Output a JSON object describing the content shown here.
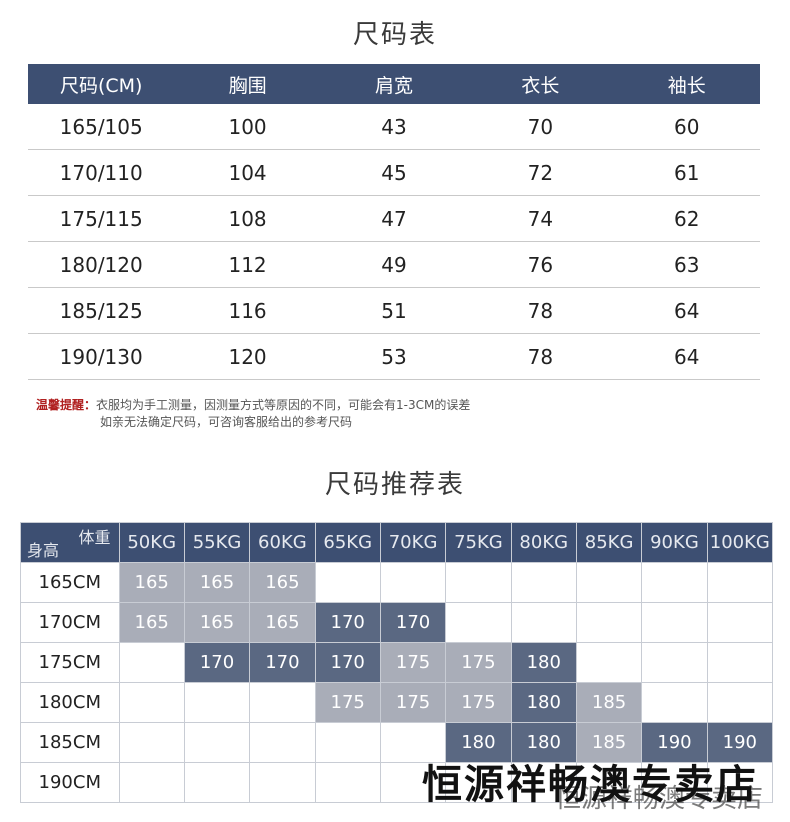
{
  "size_table": {
    "title": "尺码表",
    "headers": [
      "尺码(CM)",
      "胸围",
      "肩宽",
      "衣长",
      "袖长"
    ],
    "rows": [
      [
        "165/105",
        "100",
        "43",
        "70",
        "60"
      ],
      [
        "170/110",
        "104",
        "45",
        "72",
        "61"
      ],
      [
        "175/115",
        "108",
        "47",
        "74",
        "62"
      ],
      [
        "180/120",
        "112",
        "49",
        "76",
        "63"
      ],
      [
        "185/125",
        "116",
        "51",
        "78",
        "64"
      ],
      [
        "190/130",
        "120",
        "53",
        "78",
        "64"
      ]
    ]
  },
  "note": {
    "lead": "温馨提醒：",
    "line1": "衣服均为手工测量，因测量方式等原因的不同，可能会有1-3CM的误差",
    "line2": "如亲无法确定尺码，可咨询客服给出的参考尺码"
  },
  "recommend_table": {
    "title": "尺码推荐表",
    "corner_weight": "体重",
    "corner_height": "身高",
    "weights": [
      "50KG",
      "55KG",
      "60KG",
      "65KG",
      "70KG",
      "75KG",
      "80KG",
      "85KG",
      "90KG",
      "100KG"
    ],
    "rows": [
      {
        "height": "165CM",
        "cells": [
          {
            "v": "165",
            "t": "light"
          },
          {
            "v": "165",
            "t": "light"
          },
          {
            "v": "165",
            "t": "light"
          },
          {
            "v": "",
            "t": "empty"
          },
          {
            "v": "",
            "t": "empty"
          },
          {
            "v": "",
            "t": "empty"
          },
          {
            "v": "",
            "t": "empty"
          },
          {
            "v": "",
            "t": "empty"
          },
          {
            "v": "",
            "t": "empty"
          },
          {
            "v": "",
            "t": "empty"
          }
        ]
      },
      {
        "height": "170CM",
        "cells": [
          {
            "v": "165",
            "t": "light"
          },
          {
            "v": "165",
            "t": "light"
          },
          {
            "v": "165",
            "t": "light"
          },
          {
            "v": "170",
            "t": "dark"
          },
          {
            "v": "170",
            "t": "dark"
          },
          {
            "v": "",
            "t": "empty"
          },
          {
            "v": "",
            "t": "empty"
          },
          {
            "v": "",
            "t": "empty"
          },
          {
            "v": "",
            "t": "empty"
          },
          {
            "v": "",
            "t": "empty"
          }
        ]
      },
      {
        "height": "175CM",
        "cells": [
          {
            "v": "",
            "t": "empty"
          },
          {
            "v": "170",
            "t": "dark"
          },
          {
            "v": "170",
            "t": "dark"
          },
          {
            "v": "170",
            "t": "dark"
          },
          {
            "v": "175",
            "t": "light"
          },
          {
            "v": "175",
            "t": "light"
          },
          {
            "v": "180",
            "t": "dark"
          },
          {
            "v": "",
            "t": "empty"
          },
          {
            "v": "",
            "t": "empty"
          },
          {
            "v": "",
            "t": "empty"
          }
        ]
      },
      {
        "height": "180CM",
        "cells": [
          {
            "v": "",
            "t": "empty"
          },
          {
            "v": "",
            "t": "empty"
          },
          {
            "v": "",
            "t": "empty"
          },
          {
            "v": "175",
            "t": "light"
          },
          {
            "v": "175",
            "t": "light"
          },
          {
            "v": "175",
            "t": "light"
          },
          {
            "v": "180",
            "t": "dark"
          },
          {
            "v": "185",
            "t": "light"
          },
          {
            "v": "",
            "t": "empty"
          },
          {
            "v": "",
            "t": "empty"
          }
        ]
      },
      {
        "height": "185CM",
        "cells": [
          {
            "v": "",
            "t": "empty"
          },
          {
            "v": "",
            "t": "empty"
          },
          {
            "v": "",
            "t": "empty"
          },
          {
            "v": "",
            "t": "empty"
          },
          {
            "v": "",
            "t": "empty"
          },
          {
            "v": "180",
            "t": "dark"
          },
          {
            "v": "180",
            "t": "dark"
          },
          {
            "v": "185",
            "t": "light"
          },
          {
            "v": "190",
            "t": "dark"
          },
          {
            "v": "190",
            "t": "dark"
          }
        ]
      },
      {
        "height": "190CM",
        "cells": [
          {
            "v": "",
            "t": "empty"
          },
          {
            "v": "",
            "t": "empty"
          },
          {
            "v": "",
            "t": "empty"
          },
          {
            "v": "",
            "t": "empty"
          },
          {
            "v": "",
            "t": "empty"
          },
          {
            "v": "",
            "t": "empty"
          },
          {
            "v": "",
            "t": "empty"
          },
          {
            "v": "",
            "t": "empty"
          },
          {
            "v": "",
            "t": "empty"
          },
          {
            "v": "",
            "t": "empty"
          }
        ]
      }
    ]
  },
  "watermark": "恒源祥畅澳专卖店",
  "watermark_shadow": "恒源祥畅澳专卖店",
  "colors": {
    "header_navy": "#3d4f72",
    "cell_light": "#a9adb8",
    "cell_dark": "#5a6882",
    "note_red": "#b02020"
  }
}
